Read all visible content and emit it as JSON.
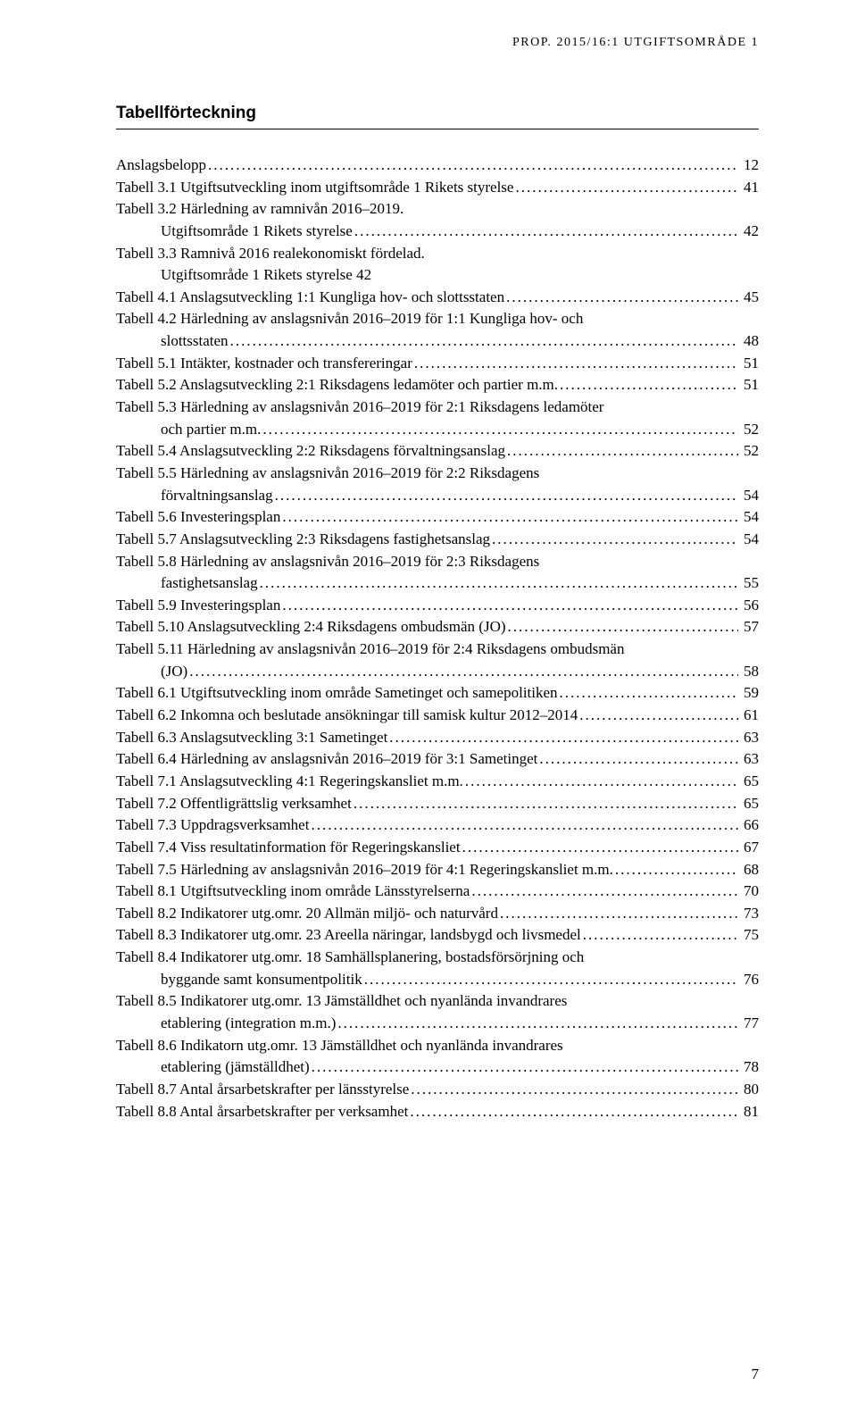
{
  "running_header": "PROP. 2015/16:1 UTGIFTSOMRÅDE 1",
  "heading": "Tabellförteckning",
  "page_number": "7",
  "entries": [
    {
      "label": "Anslagsbelopp",
      "page": "12"
    },
    {
      "label": "Tabell 3.1 Utgiftsutveckling inom utgiftsområde 1 Rikets styrelse",
      "page": "41"
    },
    {
      "label": "Tabell 3.2 Härledning av ramnivån 2016–2019.",
      "more": "Utgiftsområde 1 Rikets styrelse",
      "page": "42"
    },
    {
      "label": "Tabell 3.3 Ramnivå 2016 realekonomiskt fördelad.",
      "more": "Utgiftsområde 1 Rikets styrelse 42"
    },
    {
      "label": "Tabell 4.1 Anslagsutveckling 1:1 Kungliga hov- och slottsstaten",
      "page": "45"
    },
    {
      "label": "Tabell 4.2 Härledning av anslagsnivån 2016–2019 för 1:1 Kungliga hov- och",
      "more": "slottsstaten",
      "page": "48"
    },
    {
      "label": "Tabell 5.1 Intäkter, kostnader och transfereringar",
      "page": "51"
    },
    {
      "label": "Tabell 5.2 Anslagsutveckling 2:1 Riksdagens ledamöter och partier m.m.",
      "page": "51"
    },
    {
      "label": "Tabell 5.3 Härledning av anslagsnivån 2016–2019 för 2:1 Riksdagens ledamöter",
      "more": "och partier m.m.",
      "page": "52"
    },
    {
      "label": "Tabell 5.4 Anslagsutveckling 2:2 Riksdagens förvaltningsanslag",
      "page": "52"
    },
    {
      "label": "Tabell 5.5 Härledning av anslagsnivån 2016–2019 för 2:2 Riksdagens",
      "more": "förvaltningsanslag",
      "page": "54"
    },
    {
      "label": "Tabell 5.6 Investeringsplan",
      "page": "54"
    },
    {
      "label": "Tabell 5.7 Anslagsutveckling 2:3 Riksdagens fastighetsanslag",
      "page": "54"
    },
    {
      "label": "Tabell 5.8 Härledning av anslagsnivån 2016–2019 för 2:3 Riksdagens",
      "more": "fastighetsanslag",
      "page": "55"
    },
    {
      "label": "Tabell 5.9 Investeringsplan",
      "page": "56"
    },
    {
      "label": "Tabell 5.10 Anslagsutveckling 2:4 Riksdagens ombudsmän (JO)",
      "page": "57"
    },
    {
      "label": "Tabell 5.11 Härledning av anslagsnivån 2016–2019 för 2:4 Riksdagens ombudsmän",
      "more": "(JO)",
      "page": "58"
    },
    {
      "label": "Tabell 6.1 Utgiftsutveckling inom område Sametinget och samepolitiken",
      "page": "59"
    },
    {
      "label": "Tabell 6.2 Inkomna och beslutade ansökningar till samisk kultur 2012–2014",
      "page": "61"
    },
    {
      "label": "Tabell 6.3 Anslagsutveckling 3:1 Sametinget",
      "page": "63"
    },
    {
      "label": "Tabell 6.4 Härledning av anslagsnivån 2016–2019 för 3:1 Sametinget",
      "page": "63"
    },
    {
      "label": "Tabell 7.1 Anslagsutveckling 4:1 Regeringskansliet m.m.",
      "page": "65"
    },
    {
      "label": "Tabell 7.2 Offentligrättslig verksamhet",
      "page": "65"
    },
    {
      "label": "Tabell 7.3 Uppdragsverksamhet",
      "page": "66"
    },
    {
      "label": "Tabell 7.4 Viss resultatinformation för Regeringskansliet",
      "page": "67"
    },
    {
      "label": "Tabell 7.5 Härledning av anslagsnivån 2016–2019 för 4:1 Regeringskansliet m.m.",
      "page": "68"
    },
    {
      "label": "Tabell 8.1 Utgiftsutveckling inom område Länsstyrelserna",
      "page": "70"
    },
    {
      "label": "Tabell 8.2 Indikatorer utg.omr. 20 Allmän miljö- och naturvård",
      "page": "73"
    },
    {
      "label": "Tabell 8.3 Indikatorer utg.omr. 23 Areella näringar, landsbygd och livsmedel",
      "page": "75"
    },
    {
      "label": "Tabell 8.4 Indikatorer utg.omr. 18 Samhällsplanering, bostadsförsörjning och",
      "more": "byggande samt konsumentpolitik",
      "page": "76"
    },
    {
      "label": "Tabell 8.5 Indikatorer utg.omr. 13 Jämställdhet och nyanlända invandrares",
      "more": "etablering (integration m.m.)",
      "page": "77"
    },
    {
      "label": "Tabell 8.6 Indikatorn utg.omr. 13 Jämställdhet och nyanlända invandrares",
      "more": "etablering (jämställdhet)",
      "page": "78"
    },
    {
      "label": "Tabell 8.7 Antal årsarbetskrafter per länsstyrelse",
      "page": "80"
    },
    {
      "label": "Tabell 8.8 Antal årsarbetskrafter per verksamhet",
      "page": "81"
    }
  ]
}
